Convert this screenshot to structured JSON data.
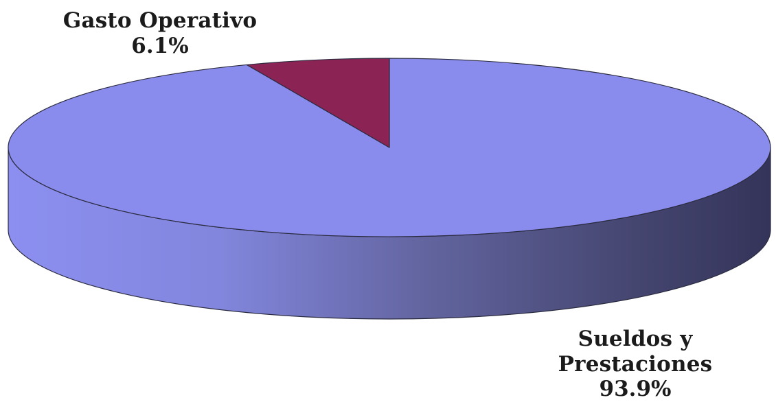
{
  "chart_data": {
    "type": "pie",
    "style": "3d",
    "categories": [
      "Gasto Operativo",
      "Sueldos y Prestaciones"
    ],
    "values": [
      6.1,
      93.9
    ],
    "value_labels": [
      "6.1%",
      "93.9%"
    ],
    "colors": [
      "#8b2454",
      "#8a8ced"
    ],
    "side_colors": [
      "#5e1638",
      "#3a3a6a"
    ],
    "title": "",
    "legend": "none"
  }
}
